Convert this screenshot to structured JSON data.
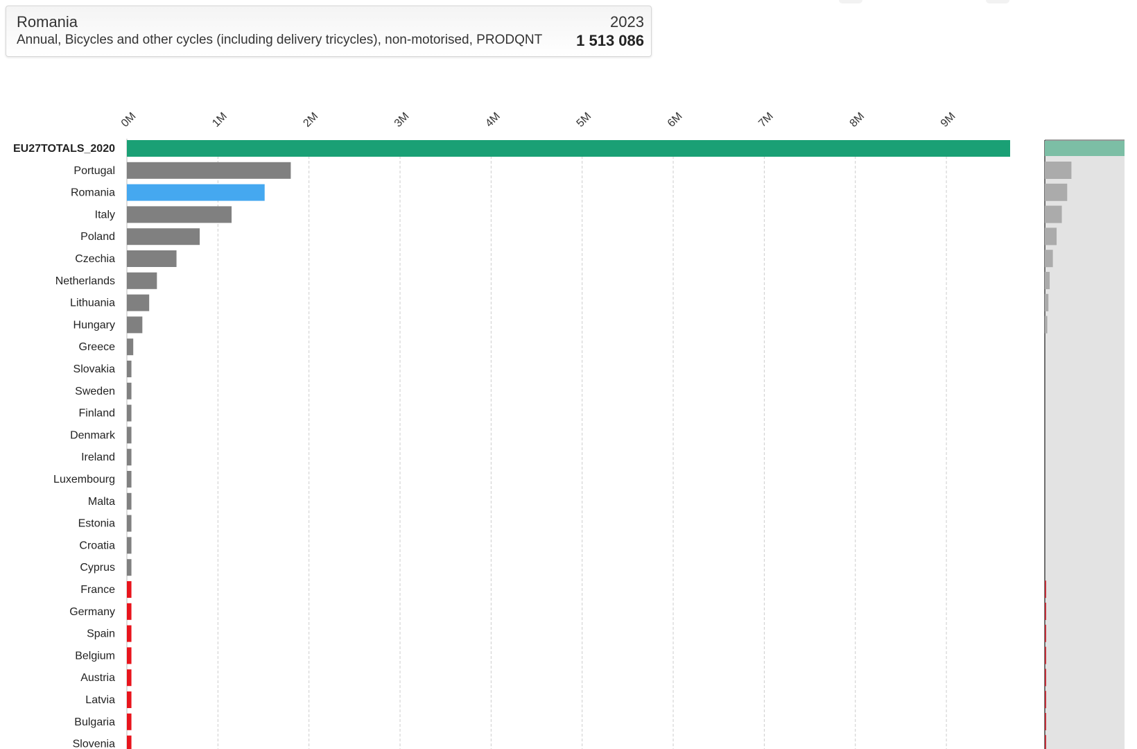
{
  "info": {
    "country": "Romania",
    "year": "2023",
    "description": "Annual, Bicycles and other cycles (including delivery tricycles), non-motorised, PRODQNT",
    "value": "1 513 086"
  },
  "colors": {
    "total": "#1aa075",
    "selected": "#45a8f0",
    "default": "#808080",
    "missing": "#e8141c",
    "grid": "#cccccc",
    "overview_bg": "#e3e3e3"
  },
  "chart_data": {
    "type": "bar",
    "orientation": "horizontal",
    "xlim": [
      0,
      9700000
    ],
    "ticks": [
      0,
      1000000,
      2000000,
      3000000,
      4000000,
      5000000,
      6000000,
      7000000,
      8000000,
      9000000
    ],
    "tick_labels": [
      "0M",
      "1M",
      "2M",
      "3M",
      "4M",
      "5M",
      "6M",
      "7M",
      "8M",
      "9M"
    ],
    "grid": true,
    "categories": [
      "EU27TOTALS_2020",
      "Portugal",
      "Romania",
      "Italy",
      "Poland",
      "Czechia",
      "Netherlands",
      "Lithuania",
      "Hungary",
      "Greece",
      "Slovakia",
      "Sweden",
      "Finland",
      "Denmark",
      "Ireland",
      "Luxembourg",
      "Malta",
      "Estonia",
      "Croatia",
      "Cyprus",
      "France",
      "Germany",
      "Spain",
      "Belgium",
      "Austria",
      "Latvia",
      "Bulgaria",
      "Slovenia"
    ],
    "values": [
      9700000,
      1800000,
      1513086,
      1150000,
      800000,
      545000,
      330000,
      245000,
      170000,
      70000,
      50000,
      50000,
      50000,
      50000,
      50000,
      50000,
      50000,
      50000,
      50000,
      50000,
      50000,
      50000,
      50000,
      50000,
      50000,
      50000,
      50000,
      50000
    ],
    "status": [
      "total",
      "default",
      "selected",
      "default",
      "default",
      "default",
      "default",
      "default",
      "default",
      "default",
      "default",
      "default",
      "default",
      "default",
      "default",
      "default",
      "default",
      "default",
      "default",
      "default",
      "missing",
      "missing",
      "missing",
      "missing",
      "missing",
      "missing",
      "missing",
      "missing"
    ]
  }
}
